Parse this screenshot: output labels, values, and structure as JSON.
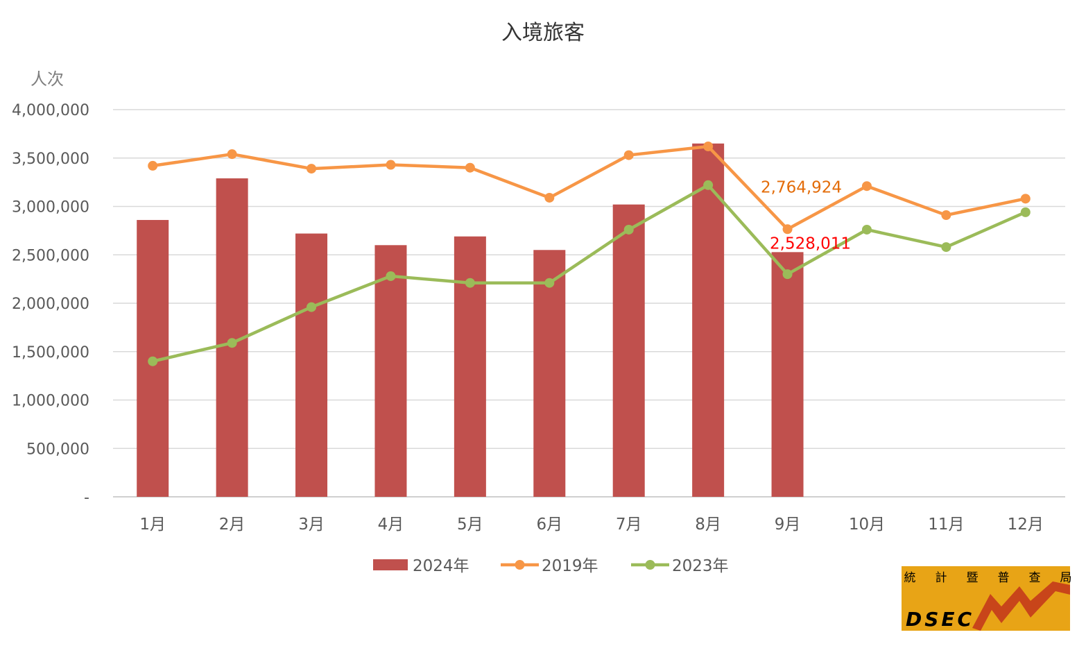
{
  "chart_data": {
    "type": "bar+line",
    "title": "入境旅客",
    "ylabel": "人次",
    "categories": [
      "1月",
      "2月",
      "3月",
      "4月",
      "5月",
      "6月",
      "7月",
      "8月",
      "9月",
      "10月",
      "11月",
      "12月"
    ],
    "ylim": [
      0,
      4000000
    ],
    "yticks": [
      0,
      500000,
      1000000,
      1500000,
      2000000,
      2500000,
      3000000,
      3500000,
      4000000
    ],
    "ytick_labels": [
      "-",
      "500,000",
      "1,000,000",
      "1,500,000",
      "2,000,000",
      "2,500,000",
      "3,000,000",
      "3,500,000",
      "4,000,000"
    ],
    "grid": true,
    "legend_position": "bottom",
    "series": [
      {
        "name": "2024年",
        "type": "bar",
        "color": "#c0504d",
        "values": [
          2860000,
          3290000,
          2720000,
          2600000,
          2690000,
          2550000,
          3020000,
          3650000,
          2528011,
          null,
          null,
          null
        ]
      },
      {
        "name": "2019年",
        "type": "line",
        "color": "#f79646",
        "values": [
          3420000,
          3540000,
          3390000,
          3430000,
          3400000,
          3090000,
          3530000,
          3620000,
          2764924,
          3210000,
          2910000,
          3080000
        ]
      },
      {
        "name": "2023年",
        "type": "line",
        "color": "#9bbb59",
        "values": [
          1400000,
          1590000,
          1960000,
          2280000,
          2210000,
          2210000,
          2760000,
          3220000,
          2300000,
          2760000,
          2580000,
          2940000
        ]
      }
    ],
    "annotations": [
      {
        "text": "2,764,924",
        "series": "2019年",
        "category": "9月",
        "color": "#e36c09"
      },
      {
        "text": "2,528,011",
        "series": "2024年",
        "category": "9月",
        "color": "#ff0000"
      }
    ]
  },
  "logo": {
    "characters": [
      "統",
      "計",
      "暨",
      "普",
      "查",
      "局"
    ],
    "abbr": "DSEC",
    "bg_color": "#e8a416",
    "mark_color": "#c8451a"
  }
}
